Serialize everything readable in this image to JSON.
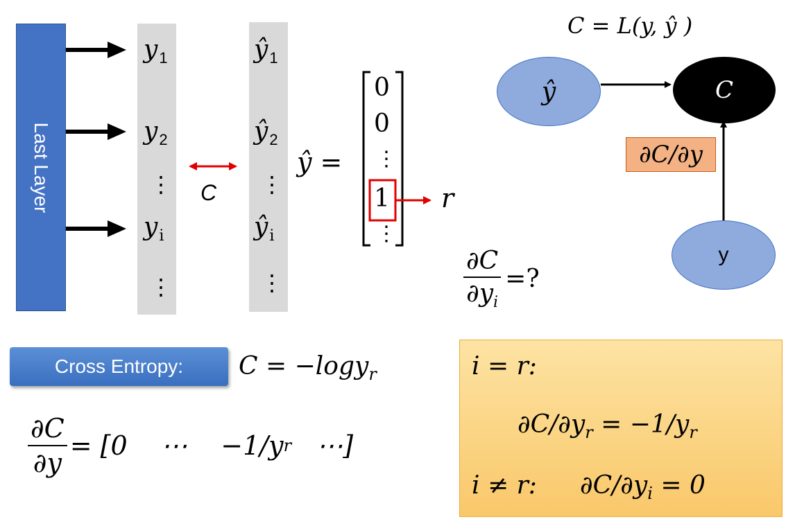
{
  "last_layer": {
    "label": "Last Layer"
  },
  "y_column": {
    "y1": "y",
    "y1_sub": "1",
    "y2": "y",
    "y2_sub": "2",
    "yi": "y",
    "yi_sub": "i",
    "vdots": "⋮"
  },
  "yhat_column": {
    "y1": "ŷ",
    "y1_sub": "1",
    "y2": "ŷ",
    "y2_sub": "2",
    "yi": "ŷ",
    "yi_sub": "i",
    "vdots": "⋮"
  },
  "cost_link": {
    "label": "C"
  },
  "target_vector": {
    "lhs": "ŷ =",
    "entries": [
      "0",
      "0",
      "⋮",
      "1",
      "⋮"
    ],
    "index_label": "r"
  },
  "graph": {
    "equation": "C = L(y, ŷ )",
    "node_yhat": "ŷ",
    "node_c": "C",
    "node_y": "y",
    "edge_label": "∂C/∂y"
  },
  "question": {
    "num": "∂C",
    "den": "∂y",
    "den_sub": "i",
    "rhs": "=?"
  },
  "cross_entropy": {
    "button_label": "Cross Entropy:",
    "formula": "C = −logy",
    "formula_sub": "r"
  },
  "gradient": {
    "num": "∂C",
    "den": "∂y",
    "rhs": "= [0    ⋯    −1/y",
    "rhs_sub": "r",
    "rhs_tail": "   ⋯]"
  },
  "cases": {
    "case1_cond": "i = r:",
    "case1_result": "∂C/∂y",
    "case1_result_sub": "r",
    "case1_result_tail": " = −1/y",
    "case1_result_tail_sub": "r",
    "case2_cond": "i ≠ r:",
    "case2_result": "∂C/∂y",
    "case2_result_sub": "i",
    "case2_result_tail": " = 0"
  }
}
